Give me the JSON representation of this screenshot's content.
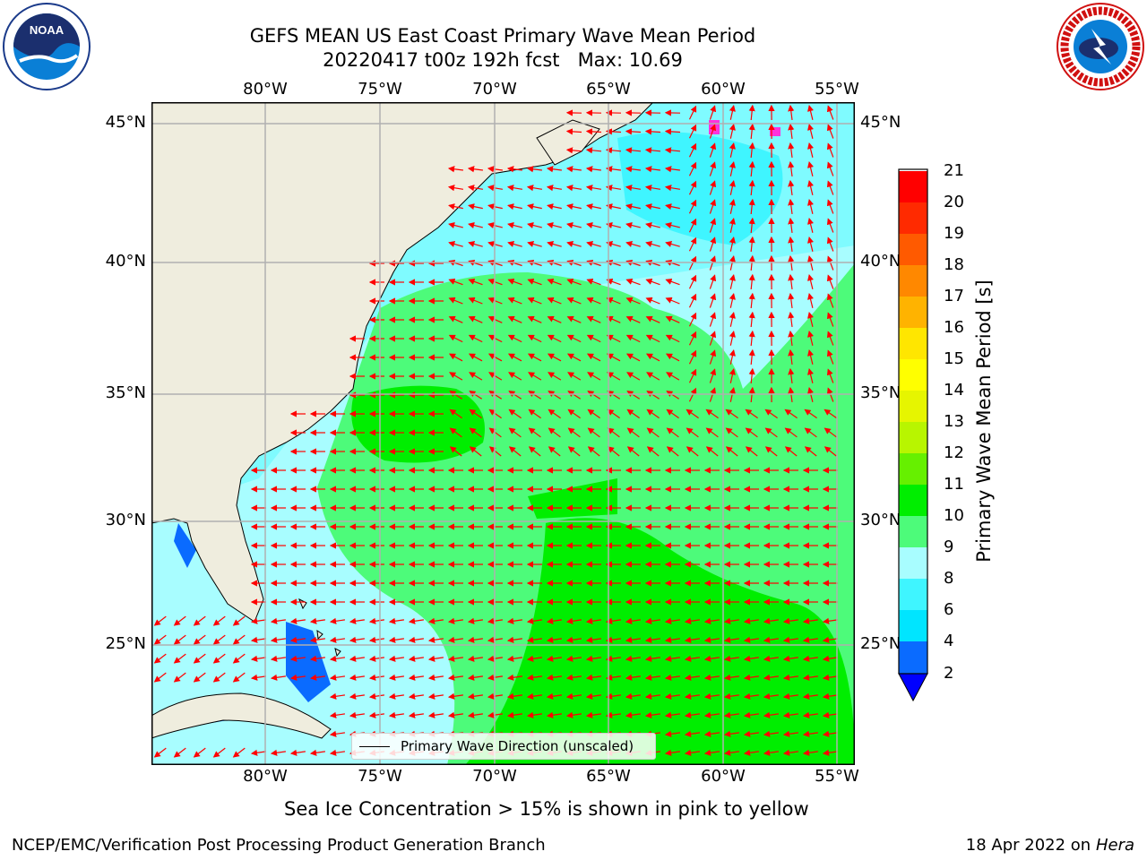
{
  "header": {
    "title_line1": "GEFS MEAN US East Coast Primary Wave Mean Period",
    "title_line2": "20220417 t00z 192h fcst   Max: 10.69"
  },
  "logos": {
    "left": {
      "icon": "noaa-logo",
      "text": "NOAA",
      "ring_text": "NATIONAL OCEANIC AND ATMOSPHERIC ADMINISTRATION · U.S. DEPARTMENT OF COMMERCE"
    },
    "right": {
      "icon": "nws-logo",
      "ring_text": "NATIONAL WEATHER SERVICE"
    }
  },
  "map": {
    "lon_labels": [
      "80°W",
      "75°W",
      "70°W",
      "65°W",
      "60°W",
      "55°W"
    ],
    "lat_labels": [
      "45°N",
      "40°N",
      "35°N",
      "30°N",
      "25°N"
    ],
    "colors": {
      "land": "#efedde",
      "ocean_low": "#7ffbff",
      "frame": "#000000",
      "grid": "#b0b0b0",
      "arrow": "#ff0000"
    }
  },
  "legend": {
    "label": "Primary Wave Direction (unscaled)"
  },
  "colorbar": {
    "label": "Primary Wave Mean Period [s]",
    "ticks": [
      "21",
      "20",
      "19",
      "18",
      "17",
      "16",
      "15",
      "14",
      "13",
      "12",
      "11",
      "10",
      "9",
      "8",
      "6",
      "4",
      "2"
    ],
    "levels": [
      {
        "range": "2-4",
        "color": "#0a6bff"
      },
      {
        "range": "4-6",
        "color": "#00e5ff"
      },
      {
        "range": "6-8",
        "color": "#3ff5ff"
      },
      {
        "range": "8-9",
        "color": "#a8fdff"
      },
      {
        "range": "9-10",
        "color": "#4dfb7a"
      },
      {
        "range": "10-11",
        "color": "#00ee00"
      },
      {
        "range": "11-12",
        "color": "#66f000"
      },
      {
        "range": "12-13",
        "color": "#b8f500"
      },
      {
        "range": "13-14",
        "color": "#e6f500"
      },
      {
        "range": "14-15",
        "color": "#ffff00"
      },
      {
        "range": "15-16",
        "color": "#ffe600"
      },
      {
        "range": "16-17",
        "color": "#ffb300"
      },
      {
        "range": "17-18",
        "color": "#ff8800"
      },
      {
        "range": "18-19",
        "color": "#ff5a00"
      },
      {
        "range": "19-20",
        "color": "#ff2a00"
      },
      {
        "range": "20-21",
        "color": "#ff0000"
      }
    ],
    "under_color": "#0000ff"
  },
  "caption": "Sea Ice Concentration > 15% is shown in pink to yellow",
  "footer": {
    "left": "NCEP/EMC/Verification Post Processing Product Generation Branch",
    "date": "18 Apr 2022 on",
    "machine": "Hera"
  }
}
